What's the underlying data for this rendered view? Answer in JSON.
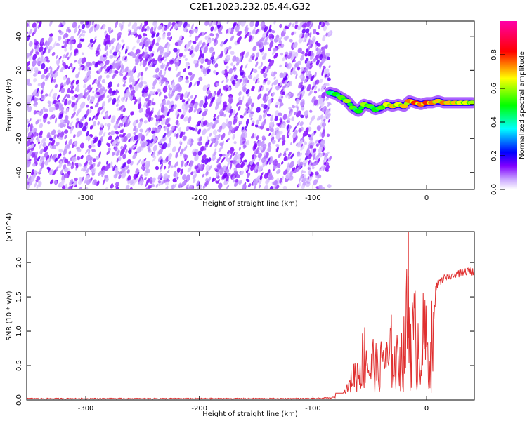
{
  "figure_title": "C2E1.2023.232.05.44.G32",
  "chart_data": [
    {
      "type": "heatmap",
      "title": "C2E1.2023.232.05.44.G32",
      "xlabel": "Height of straight line (km)",
      "ylabel": "Frequency (Hz)",
      "xlim": [
        -352,
        42
      ],
      "ylim": [
        -50,
        49
      ],
      "xticks": [
        -300,
        -200,
        -100,
        0
      ],
      "xtick_labels": [
        "-300",
        "-200",
        "-100",
        "0"
      ],
      "yticks": [
        40,
        20,
        0,
        -20,
        -40
      ],
      "ytick_labels": [
        "40",
        "20",
        "0",
        "-20",
        "-40"
      ],
      "grid": false,
      "colorbar": {
        "label": "Normalized spectral amplitude",
        "range": [
          0,
          1
        ],
        "ticks": [
          0.0,
          0.2,
          0.4,
          0.6,
          0.8
        ],
        "tick_labels": [
          "0.0",
          "0.2",
          "0.4",
          "0.6",
          "0.8"
        ],
        "colormap": [
          "#ffffff",
          "#8000ff",
          "#0000ff",
          "#00ffff",
          "#00ff00",
          "#ffff00",
          "#ff0000",
          "#ff00aa"
        ]
      },
      "noise_region": {
        "x": [
          -352,
          -85
        ],
        "y": [
          -50,
          49
        ],
        "level": 0.25
      },
      "signal_ridge": [
        {
          "x": -85,
          "y": 7,
          "amp": 0.45
        },
        {
          "x": -80,
          "y": 6,
          "amp": 0.5
        },
        {
          "x": -75,
          "y": 4,
          "amp": 0.55
        },
        {
          "x": -70,
          "y": 2,
          "amp": 0.6
        },
        {
          "x": -65,
          "y": -2,
          "amp": 0.55
        },
        {
          "x": -60,
          "y": -4,
          "amp": 0.5
        },
        {
          "x": -55,
          "y": 0,
          "amp": 0.6
        },
        {
          "x": -50,
          "y": -1,
          "amp": 0.55
        },
        {
          "x": -45,
          "y": -3,
          "amp": 0.5
        },
        {
          "x": -40,
          "y": -2,
          "amp": 0.55
        },
        {
          "x": -35,
          "y": 0,
          "amp": 0.65
        },
        {
          "x": -30,
          "y": -1,
          "amp": 0.7
        },
        {
          "x": -25,
          "y": 0,
          "amp": 0.65
        },
        {
          "x": -20,
          "y": -1,
          "amp": 0.7
        },
        {
          "x": -15,
          "y": 2,
          "amp": 0.75
        },
        {
          "x": -10,
          "y": 1,
          "amp": 0.8
        },
        {
          "x": -5,
          "y": 0,
          "amp": 0.75
        },
        {
          "x": 0,
          "y": 1,
          "amp": 0.8
        },
        {
          "x": 5,
          "y": 1,
          "amp": 0.75
        },
        {
          "x": 10,
          "y": 2,
          "amp": 0.7
        },
        {
          "x": 15,
          "y": 1,
          "amp": 0.75
        },
        {
          "x": 20,
          "y": 1,
          "amp": 0.7
        },
        {
          "x": 25,
          "y": 1,
          "amp": 0.7
        },
        {
          "x": 30,
          "y": 1,
          "amp": 0.65
        },
        {
          "x": 35,
          "y": 1,
          "amp": 0.65
        },
        {
          "x": 40,
          "y": 1,
          "amp": 0.6
        }
      ]
    },
    {
      "type": "line",
      "title": "",
      "xlabel": "Height of straight line (km)",
      "ylabel": "SNR (10 * v/v)",
      "y_multiplier_label": "(x10^4)",
      "xlim": [
        -352,
        42
      ],
      "ylim": [
        0,
        2.45
      ],
      "xticks": [
        -300,
        -200,
        -100,
        0
      ],
      "xtick_labels": [
        "-300",
        "-200",
        "-100",
        "0"
      ],
      "yticks": [
        0.0,
        0.5,
        1.0,
        1.5,
        2.0
      ],
      "ytick_labels": [
        "0.0",
        "0.5",
        "1.0",
        "1.5",
        "2.0"
      ],
      "grid": false,
      "series": [
        {
          "color": "#e03030",
          "x": [
            -352,
            -300,
            -250,
            -200,
            -150,
            -100,
            -85,
            -75,
            -72,
            -68,
            -65,
            -60,
            -57,
            -53,
            -50,
            -46,
            -42,
            -38,
            -34,
            -30,
            -27,
            -24,
            -21,
            -18,
            -16,
            -13,
            -10,
            -6,
            -2,
            2,
            6,
            10,
            15,
            20,
            25,
            30,
            35,
            40,
            42
          ],
          "y": [
            0.02,
            0.02,
            0.02,
            0.02,
            0.02,
            0.02,
            0.03,
            0.05,
            0.15,
            0.3,
            0.55,
            0.7,
            0.95,
            1.3,
            0.6,
            1.05,
            0.5,
            1.25,
            0.8,
            1.35,
            0.7,
            1.4,
            0.9,
            1.75,
            2.45,
            1.5,
            1.6,
            1.4,
            1.55,
            1.1,
            1.6,
            1.75,
            1.82,
            1.86,
            1.88,
            1.9,
            1.92,
            1.93,
            1.94
          ]
        }
      ]
    }
  ]
}
